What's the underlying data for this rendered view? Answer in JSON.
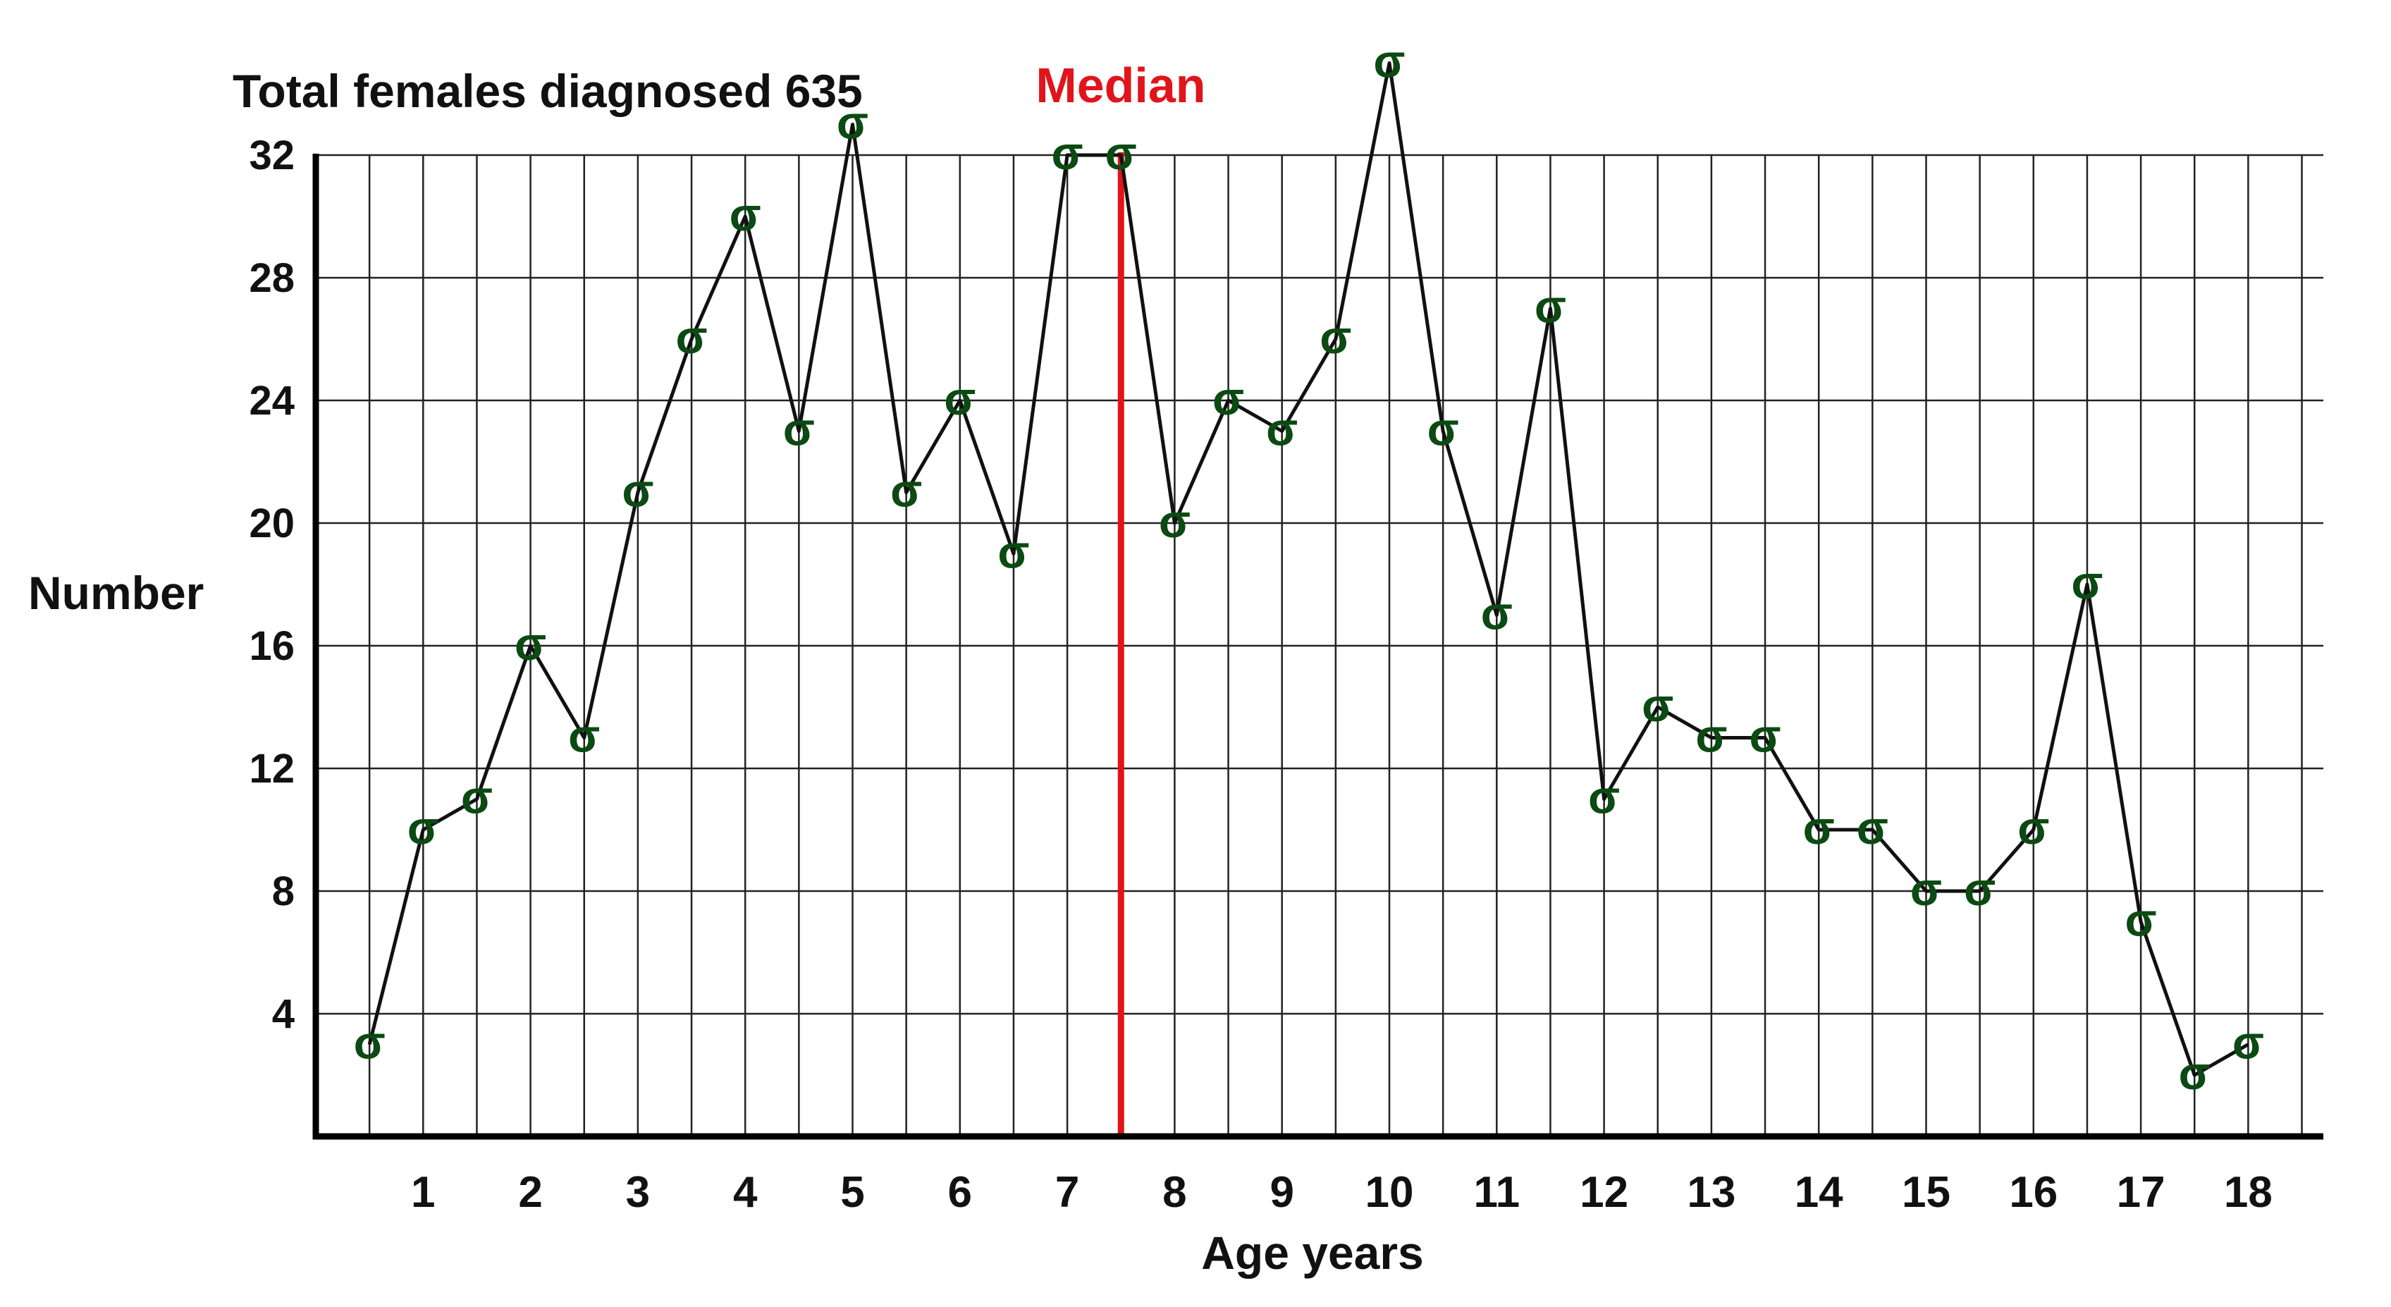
{
  "chart_data": {
    "type": "line",
    "title": "Total females diagnosed 635",
    "xlabel": "Age years",
    "ylabel": "Number",
    "xlim": [
      0,
      18.7
    ],
    "ylim": [
      0,
      32
    ],
    "yticks": [
      4,
      8,
      12,
      16,
      20,
      24,
      28,
      32
    ],
    "xticks": [
      1,
      2,
      3,
      4,
      5,
      6,
      7,
      8,
      9,
      10,
      11,
      12,
      13,
      14,
      15,
      16,
      17,
      18
    ],
    "grid": true,
    "marker_symbol": "σ",
    "marker_color": "#0b4a12",
    "line_color": "#111111",
    "median": {
      "label": "Median",
      "x": 7.5,
      "color": "#e0151b"
    },
    "series": [
      {
        "x": [
          0.5,
          1,
          1.5,
          2,
          2.5,
          3,
          3.5,
          4,
          4.5,
          5,
          5.5,
          6,
          6.5,
          7,
          7.5,
          8,
          8.5,
          9,
          9.5,
          10,
          10.5,
          11,
          11.5,
          12,
          12.5,
          13,
          13.5,
          14,
          14.5,
          15,
          15.5,
          16,
          16.5,
          17,
          17.5,
          18
        ],
        "values": [
          3,
          10,
          11,
          16,
          13,
          21,
          26,
          30,
          23,
          33,
          21,
          24,
          19,
          32,
          32,
          20,
          24,
          23,
          26,
          35,
          23,
          17,
          27,
          11,
          14,
          13,
          13,
          10,
          10,
          8,
          8,
          10,
          18,
          7,
          2,
          3
        ]
      }
    ]
  }
}
